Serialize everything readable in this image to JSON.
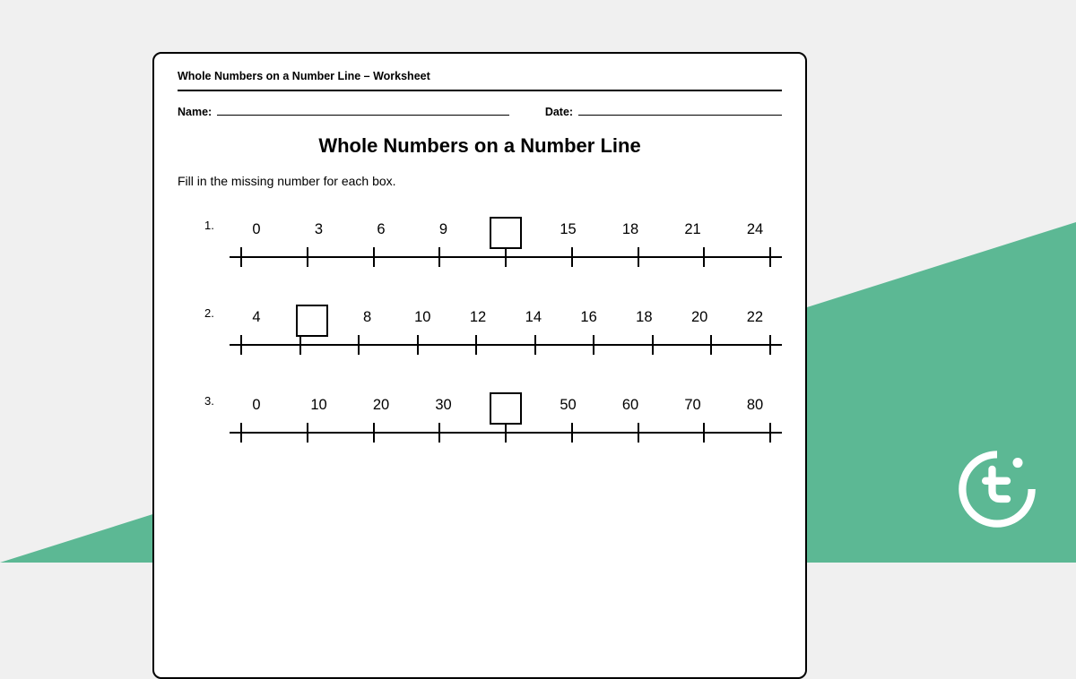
{
  "background": {
    "top_color": "#f0f0f0",
    "accent_color": "#5cb894"
  },
  "worksheet": {
    "header": "Whole Numbers on a Number Line – Worksheet",
    "name_label": "Name:",
    "date_label": "Date:",
    "title": "Whole Numbers on a Number Line",
    "instruction": "Fill in the missing number for each box.",
    "border_color": "#000000",
    "background_color": "#ffffff",
    "title_fontsize": 22,
    "body_fontsize": 14
  },
  "problems": [
    {
      "number": "1.",
      "labels": [
        "0",
        "3",
        "6",
        "9",
        "",
        "15",
        "18",
        "21",
        "24"
      ],
      "box_index": 4,
      "tick_count": 9
    },
    {
      "number": "2.",
      "labels": [
        "4",
        "",
        "8",
        "10",
        "12",
        "14",
        "16",
        "18",
        "20",
        "22"
      ],
      "box_index": 1,
      "tick_count": 10
    },
    {
      "number": "3.",
      "labels": [
        "0",
        "10",
        "20",
        "30",
        "",
        "50",
        "60",
        "70",
        "80"
      ],
      "box_index": 4,
      "tick_count": 9
    }
  ],
  "logo": {
    "color": "#ffffff",
    "name": "brand-logo"
  }
}
